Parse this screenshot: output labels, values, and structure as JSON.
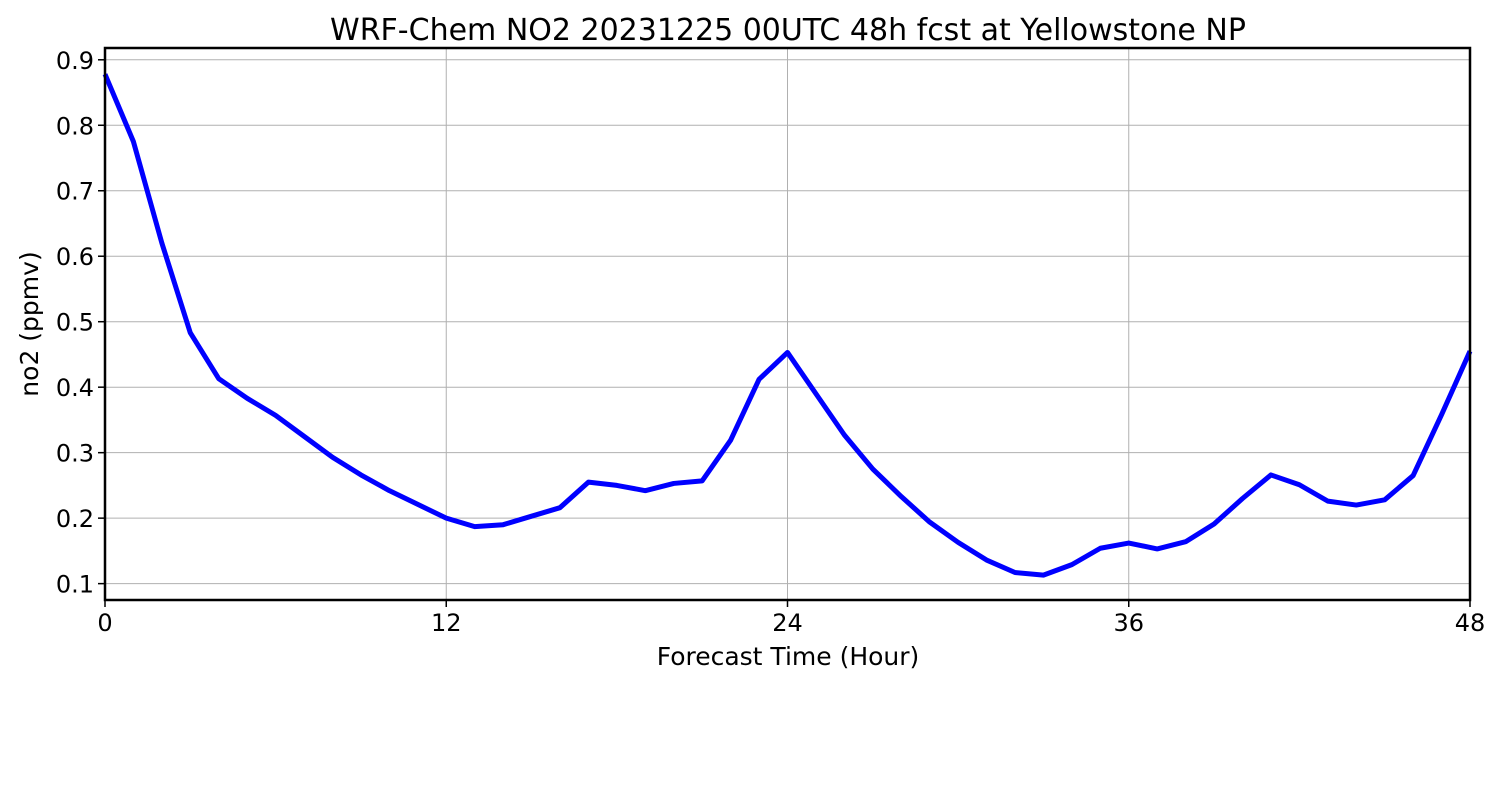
{
  "chart_data": {
    "type": "line",
    "title": "WRF-Chem NO2  20231225 00UTC 48h fcst at Yellowstone NP",
    "xlabel": "Forecast Time (Hour)",
    "ylabel": "no2  (ppmv)",
    "xlim": [
      0,
      48
    ],
    "ylim": [
      0.075,
      0.918
    ],
    "xticks": [
      0,
      12,
      24,
      36,
      48
    ],
    "yticks": [
      0.1,
      0.2,
      0.3,
      0.4,
      0.5,
      0.6,
      0.7,
      0.8,
      0.9
    ],
    "grid": true,
    "series": [
      {
        "color": "#0000ff",
        "x": [
          0,
          1,
          2,
          3,
          4,
          5,
          6,
          7,
          8,
          9,
          10,
          11,
          12,
          13,
          14,
          15,
          16,
          17,
          18,
          19,
          20,
          21,
          22,
          23,
          24,
          25,
          26,
          27,
          28,
          29,
          30,
          31,
          32,
          33,
          34,
          35,
          36,
          37,
          38,
          39,
          40,
          41,
          42,
          43,
          44,
          45,
          46,
          47,
          48
        ],
        "values": [
          0.878,
          0.775,
          0.62,
          0.483,
          0.413,
          0.383,
          0.357,
          0.325,
          0.293,
          0.266,
          0.242,
          0.221,
          0.2,
          0.187,
          0.19,
          0.203,
          0.216,
          0.255,
          0.25,
          0.242,
          0.253,
          0.257,
          0.319,
          0.412,
          0.453,
          0.39,
          0.327,
          0.275,
          0.233,
          0.194,
          0.163,
          0.136,
          0.117,
          0.113,
          0.129,
          0.154,
          0.162,
          0.153,
          0.164,
          0.191,
          0.23,
          0.266,
          0.251,
          0.226,
          0.22,
          0.228,
          0.265,
          0.358,
          0.455
        ]
      }
    ]
  }
}
